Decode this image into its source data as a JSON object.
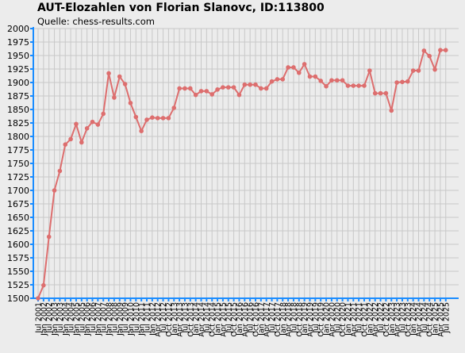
{
  "title": "AUT-Elozahlen von Florian Slanovc, ID:113800",
  "source": "Quelle: chess-results.com",
  "colors": {
    "line": "#dd6e6e",
    "grid": "#c8c8c8",
    "axis": "#1a8cff",
    "background": "#ececec"
  },
  "chart_data": {
    "type": "line",
    "title": "AUT-Elozahlen von Florian Slanovc, ID:113800",
    "ylim": [
      1500,
      2000
    ],
    "y_ticks": [
      1500,
      1525,
      1550,
      1575,
      1600,
      1625,
      1650,
      1675,
      1700,
      1725,
      1750,
      1775,
      1800,
      1825,
      1850,
      1875,
      1900,
      1925,
      1950,
      1975,
      2000
    ],
    "grid": true,
    "x_labels": [
      "Jul 2001",
      "Jan 2002",
      "Jul 2002",
      "Jan 2003",
      "Jul 2003",
      "Jan 2004",
      "Jul 2004",
      "Jan 2005",
      "Jul 2005",
      "Jan 2006",
      "Jul 2006",
      "Jan 2007",
      "Jul 2007",
      "Jan 2008",
      "Jul 2008",
      "Jan 2009",
      "Jul 2009",
      "Jan 2010",
      "Jul 2010",
      "Jan 2011",
      "Jul 2011",
      "Jan 2012",
      "Apr 2012",
      "Jul 2012",
      "Oct 2012",
      "Jan 2013",
      "Apr 2013",
      "Jul 2013",
      "Oct 2013",
      "Jan 2014",
      "Apr 2014",
      "Jul 2014",
      "Oct 2014",
      "Jan 2015",
      "Apr 2015",
      "Jul 2015",
      "Oct 2015",
      "Jan 2016",
      "Apr 2016",
      "Jul 2016",
      "Oct 2016",
      "Jan 2017",
      "Apr 2017",
      "Jul 2017",
      "Oct 2017",
      "Jan 2018",
      "Apr 2018",
      "Jul 2018",
      "Oct 2018",
      "Jan 2019",
      "Apr 2019",
      "Jul 2019",
      "Oct 2019",
      "Jan 2020",
      "Apr 2020",
      "Jul 2020",
      "Oct 2020",
      "Jan 2021",
      "Apr 2021",
      "Jul 2021",
      "Oct 2021",
      "Jan 2022",
      "Apr 2022",
      "Jul 2022",
      "Oct 2022",
      "Jan 2023",
      "Apr 2023",
      "Jul 2023",
      "Oct 2023",
      "Jan 2024",
      "Apr 2024",
      "Jul 2024",
      "Oct 2024",
      "Jan 2025",
      "Apr 2025",
      "Jul 2025"
    ],
    "series": [
      {
        "values": [
          1500,
          1524,
          1614,
          1700,
          1736,
          1785,
          1795,
          1823,
          1789,
          1815,
          1827,
          1822,
          1842,
          1917,
          1872,
          1911,
          1897,
          1862,
          1836,
          1810,
          1831,
          1835,
          1834,
          1834,
          1834,
          1853,
          1889,
          1889,
          1889,
          1877,
          1884,
          1884,
          1878,
          1887,
          1891,
          1891,
          1891,
          1877,
          1896,
          1896,
          1896,
          1889,
          1889,
          1902,
          1906,
          1906,
          1928,
          1928,
          1918,
          1934,
          1911,
          1911,
          1903,
          1893,
          1904,
          1904,
          1904,
          1894,
          1894,
          1894,
          1894,
          1922,
          1880,
          1880,
          1880,
          1848,
          1900,
          1901,
          1902,
          1922,
          1922,
          1959,
          1949,
          1924,
          1960,
          1960
        ]
      }
    ]
  }
}
